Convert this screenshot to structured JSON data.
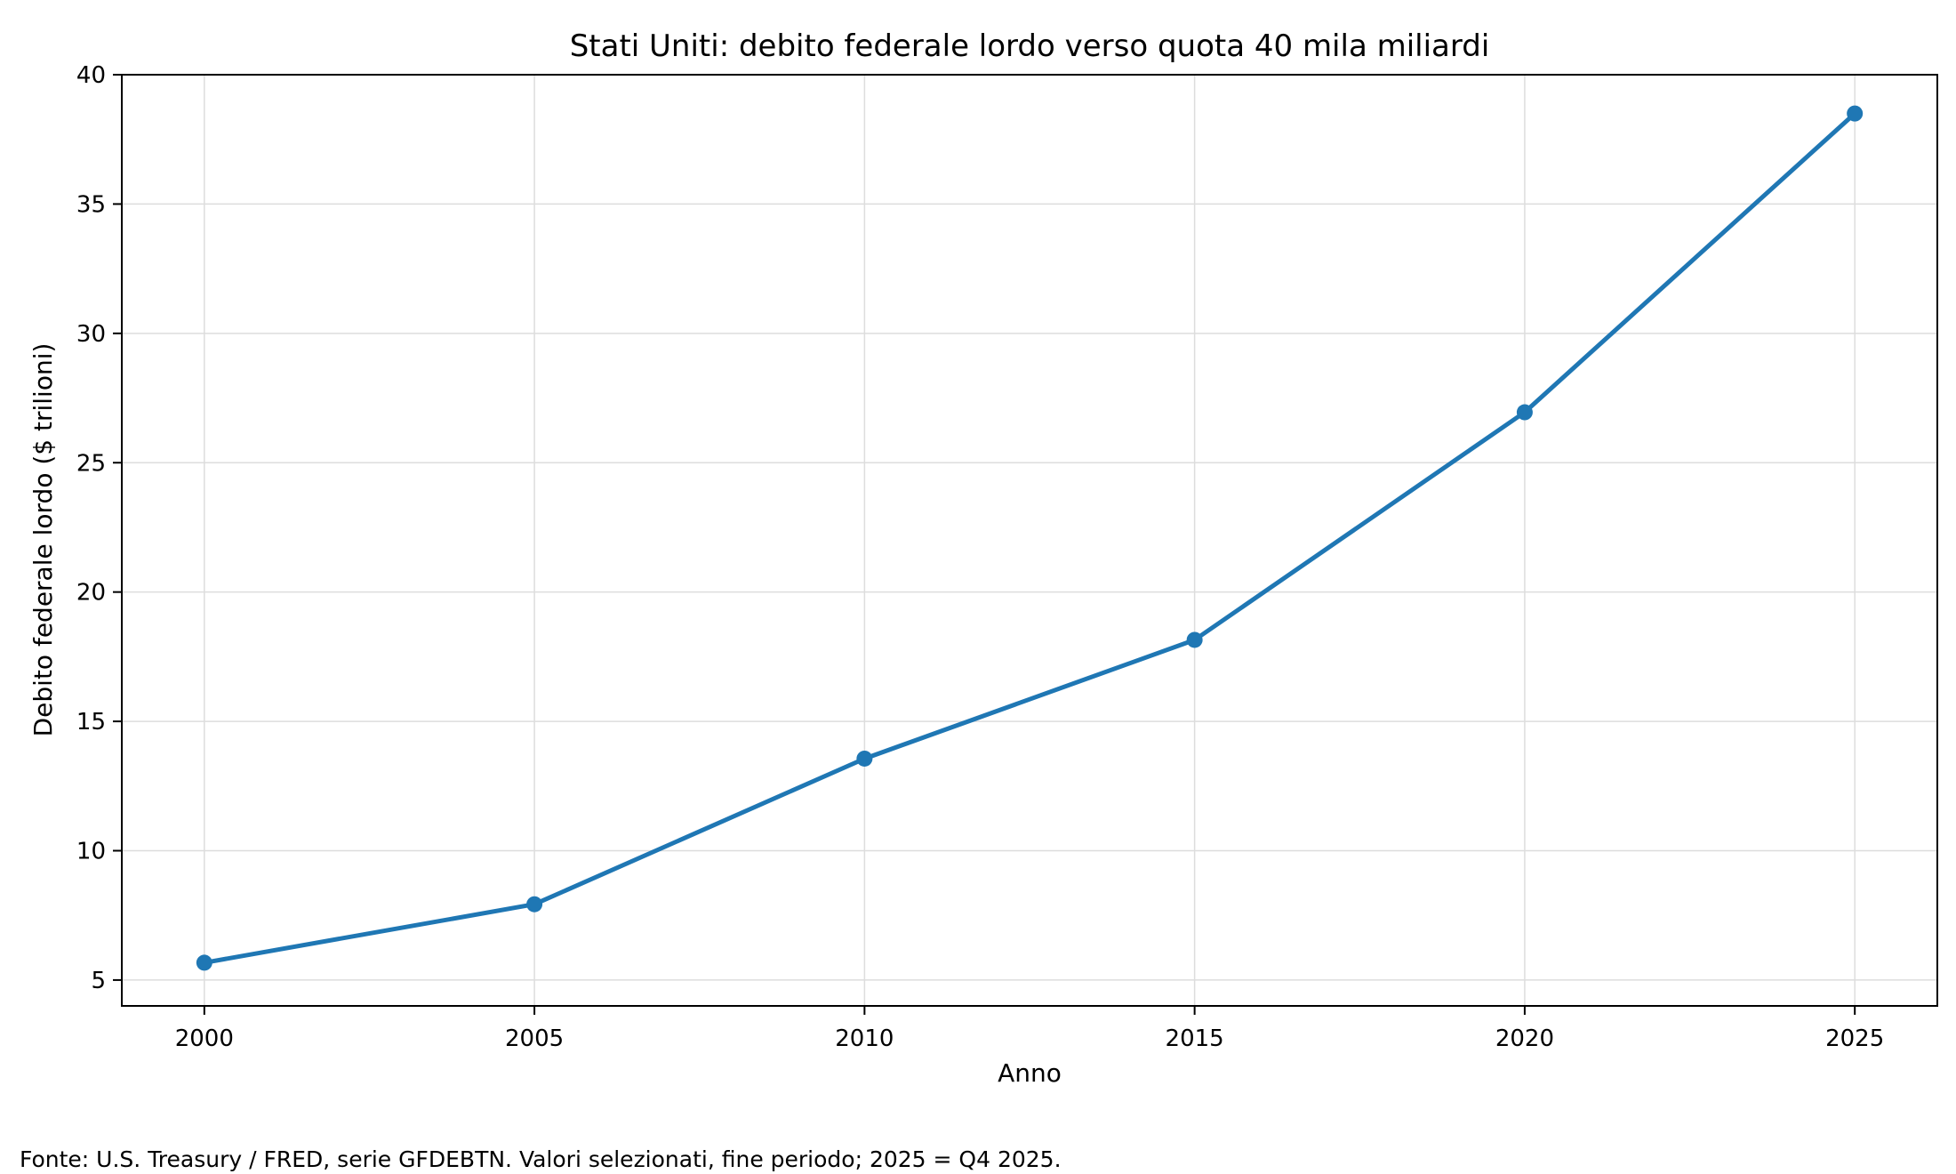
{
  "chart_data": {
    "type": "line",
    "title": "Stati Uniti: debito federale lordo verso quota 40 mila miliardi",
    "xlabel": "Anno",
    "ylabel": "Debito federale lordo ($ trilioni)",
    "xlim": [
      1998.75,
      2026.25
    ],
    "ylim": [
      4,
      40
    ],
    "x_ticks": [
      2000,
      2005,
      2010,
      2015,
      2020,
      2025
    ],
    "y_ticks": [
      5,
      10,
      15,
      20,
      25,
      30,
      35,
      40
    ],
    "grid": true,
    "series": [
      {
        "x": [
          2000,
          2005,
          2010,
          2015,
          2020,
          2025
        ],
        "values": [
          5.67,
          7.93,
          13.56,
          18.15,
          26.95,
          38.5
        ],
        "color": "#1f77b4",
        "marker": "circle"
      }
    ]
  },
  "footnote": "Fonte: U.S. Treasury / FRED, serie GFDEBTN. Valori selezionati, fine periodo; 2025 = Q4 2025."
}
